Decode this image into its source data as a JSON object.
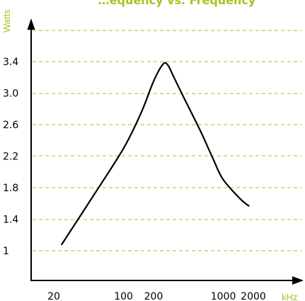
{
  "chart_data": {
    "type": "line",
    "title_fragment": "…equency vs. Frequency",
    "xlabel": "kHz",
    "ylabel": "Watts",
    "x_tick_labels": [
      "20",
      "100",
      "200",
      "1000",
      "2000"
    ],
    "y_ticks": [
      1,
      1.4,
      1.8,
      2.2,
      2.6,
      3.0,
      3.4
    ],
    "y_tick_labels": [
      "1",
      "1.4",
      "1.8",
      "2.2",
      "2.6",
      "3.0",
      "3.4"
    ],
    "ylim": [
      0.6,
      3.8
    ],
    "grid": true,
    "series": [
      {
        "x": [
          24,
          50,
          100,
          150,
          200,
          250,
          280,
          320,
          400,
          600,
          800,
          1000,
          1500,
          1800
        ],
        "y": [
          1.08,
          1.7,
          2.3,
          2.75,
          3.15,
          3.37,
          3.35,
          3.2,
          2.95,
          2.5,
          2.15,
          1.9,
          1.65,
          1.57
        ]
      }
    ],
    "colors": {
      "line": "#000000",
      "grid": "#b5cf50",
      "axis_label": "#a6c421",
      "title": "#a6c421"
    }
  }
}
